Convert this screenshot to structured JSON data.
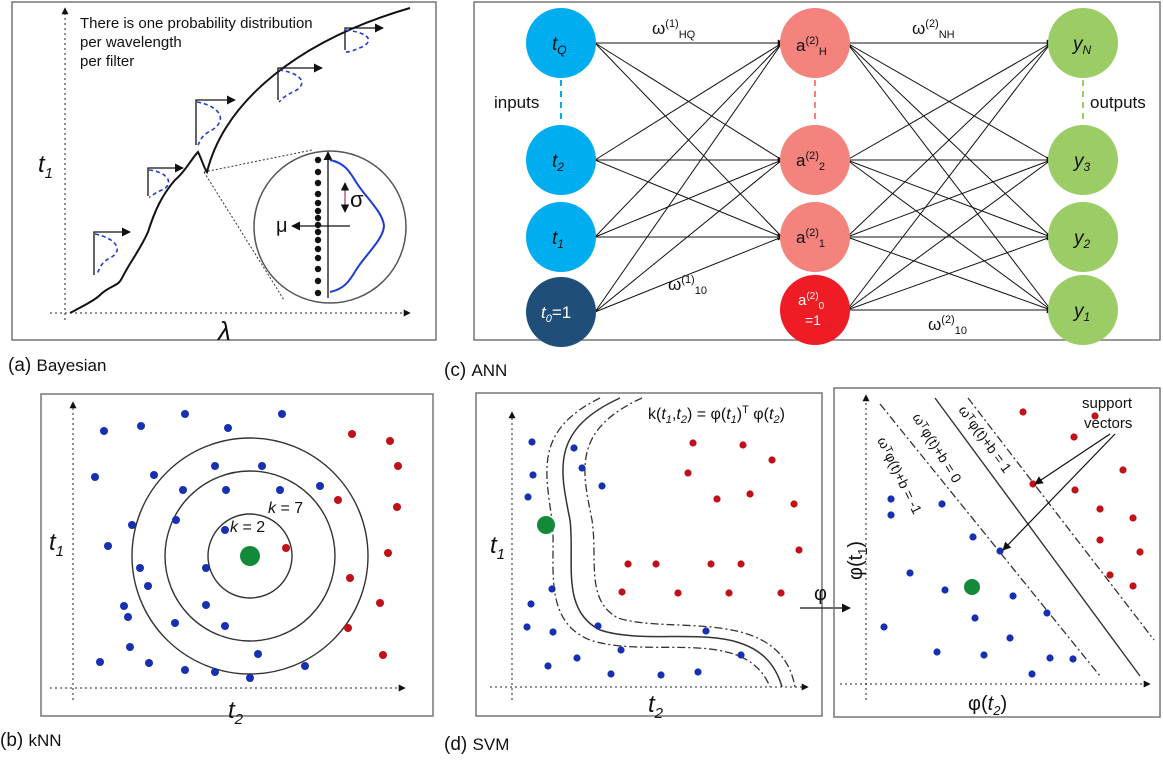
{
  "panel_a": {
    "caption_letter": "(a)",
    "caption_name": "Bayesian",
    "note_line1": "There is one probability distribution",
    "note_line2": "per wavelength",
    "note_line3": "per filter",
    "y_axis": "t",
    "y_axis_sub": "1",
    "x_axis": "λ",
    "mu": "μ",
    "sigma": "σ"
  },
  "panel_b": {
    "caption_letter": "(b)",
    "caption_name": "kNN",
    "y_axis": "t",
    "y_axis_sub": "1",
    "x_axis": "t",
    "x_axis_sub": "2",
    "k7_k": "k",
    "k7_rest": " = 7",
    "k2_k": "k",
    "k2_rest": " = 2"
  },
  "panel_c": {
    "caption_letter": "(c)",
    "caption_name": "ANN",
    "inputs_label": "inputs",
    "outputs_label": "outputs",
    "n_tQ": "t",
    "n_tQ_sub": "Q",
    "n_t2": "t",
    "n_t2_sub": "2",
    "n_t1": "t",
    "n_t1_sub": "1",
    "n_t0": "t",
    "n_t0_sub": "0",
    "n_t0_rest": "=1",
    "n_aH": "a",
    "n_aH_sup": "(2)",
    "n_aH_sub": "H",
    "n_a2": "a",
    "n_a2_sup": "(2)",
    "n_a2_sub": "2",
    "n_a1": "a",
    "n_a1_sup": "(2)",
    "n_a1_sub": "1",
    "n_a0": "a",
    "n_a0_sup": "(2)",
    "n_a0_sub": "0",
    "n_a0_line2": "=1",
    "n_yN": "y",
    "n_yN_sub": "N",
    "n_y3": "y",
    "n_y3_sub": "3",
    "n_y2": "y",
    "n_y2_sub": "2",
    "n_y1": "y",
    "n_y1_sub": "1",
    "w_HQ": "ω",
    "w_HQ_sup": "(1)",
    "w_HQ_sub": "HQ",
    "w_10a": "ω",
    "w_10a_sup": "(1)",
    "w_10a_sub": "10",
    "w_NH": "ω",
    "w_NH_sup": "(2)",
    "w_NH_sub": "NH",
    "w_10b": "ω",
    "w_10b_sup": "(2)",
    "w_10b_sub": "10"
  },
  "panel_d": {
    "caption_letter": "(d)",
    "caption_name": "SVM",
    "kernel_parts": [
      "k(",
      "t",
      "1",
      ",",
      "t",
      "2",
      ") = φ(",
      "t",
      "1",
      ")",
      "T",
      " φ(",
      "t",
      "2",
      ")"
    ],
    "phi_arrow": "φ",
    "left_y": "t",
    "left_y_sub": "1",
    "left_x": "t",
    "left_x_sub": "2",
    "right_y": "φ(t",
    "right_y_sub": "1",
    "right_y_end": ")",
    "right_x": "φ(",
    "right_x_t": "t",
    "right_x_sub": "2",
    "right_x_end": ")",
    "support_line1": "support",
    "support_line2": "vectors",
    "margin_neg": "ωᵀφ(t)+b = -1",
    "margin_zero": "ωᵀφ(t)+b = 0",
    "margin_pos": "ωᵀφ(t)+b = 1"
  },
  "colors": {
    "input_node": "#00aeef",
    "bias_input_node": "#1f4e79",
    "hidden_node": "#f4837d",
    "bias_hidden_node": "#ee1c25",
    "output_node": "#9ccc65",
    "class_blue": "#1530b0",
    "class_red": "#c0101a",
    "query_point": "#138a3a",
    "gaussian": "#1f3bd1"
  }
}
